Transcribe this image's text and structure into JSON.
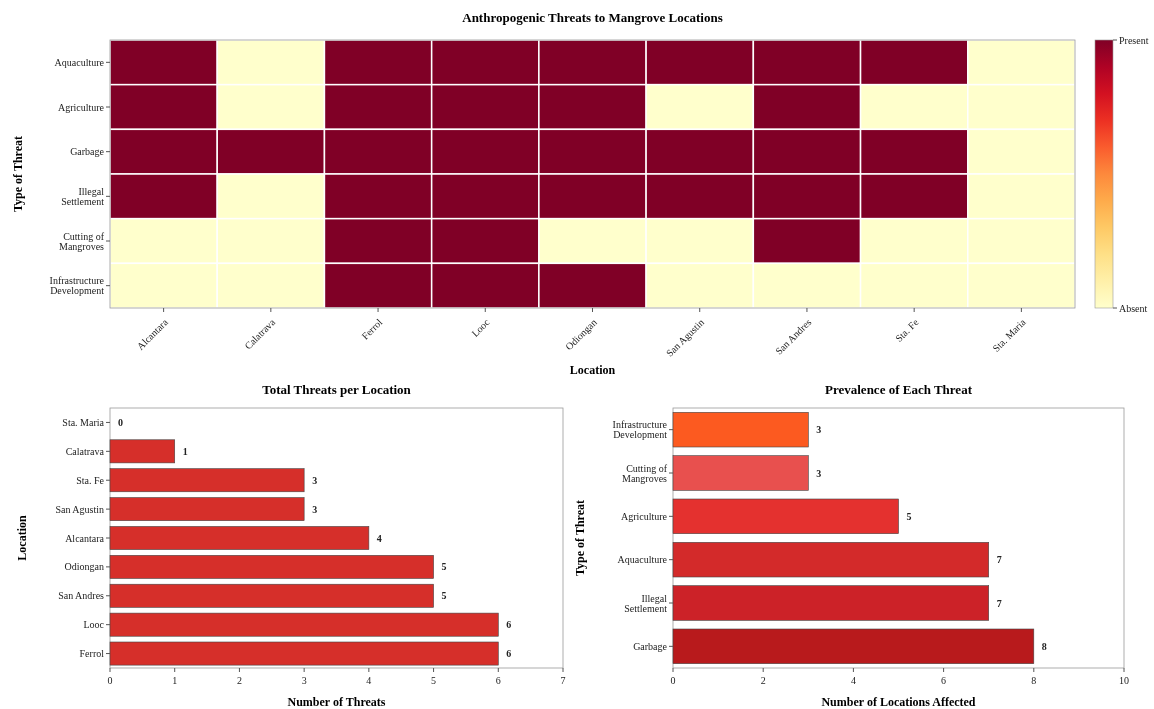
{
  "chart_data": [
    {
      "type": "heatmap",
      "title": "Anthropogenic Threats to Mangrove Locations",
      "xlabel": "Location",
      "ylabel": "Type of Threat",
      "categories": [
        "Alcantara",
        "Calatrava",
        "Ferrol",
        "Looc",
        "Odiongan",
        "San Agustin",
        "San Andres",
        "Sta. Fe",
        "Sta. Maria"
      ],
      "y_categories": [
        "Aquaculture",
        "Agriculture",
        "Garbage",
        "Illegal\nSettlement",
        "Cutting of\nMangroves",
        "Infrastructure\nDevelopment"
      ],
      "cells": [
        [
          1,
          0,
          1,
          1,
          1,
          1,
          1,
          1,
          0
        ],
        [
          1,
          0,
          1,
          1,
          1,
          0,
          1,
          0,
          0
        ],
        [
          1,
          1,
          1,
          1,
          1,
          1,
          1,
          1,
          0
        ],
        [
          1,
          0,
          1,
          1,
          1,
          1,
          1,
          1,
          0
        ],
        [
          0,
          0,
          1,
          1,
          0,
          0,
          1,
          0,
          0
        ],
        [
          0,
          0,
          1,
          1,
          1,
          0,
          0,
          0,
          0
        ]
      ],
      "clim": [
        0,
        1
      ],
      "cticks": [
        {
          "value": 0,
          "label": "Absent"
        },
        {
          "value": 1,
          "label": "Present"
        }
      ]
    },
    {
      "type": "bar",
      "orientation": "horizontal",
      "title": "Total Threats per Location",
      "xlabel": "Number of Threats",
      "ylabel": "Location",
      "categories": [
        "Sta. Maria",
        "Calatrava",
        "Sta. Fe",
        "San Agustin",
        "Alcantara",
        "Odiongan",
        "San Andres",
        "Looc",
        "Ferrol"
      ],
      "values": [
        0,
        1,
        3,
        3,
        4,
        5,
        5,
        6,
        6
      ],
      "color": "#d62f2a",
      "xlim": [
        0,
        7
      ],
      "xticks": [
        0,
        1,
        2,
        3,
        4,
        5,
        6,
        7
      ],
      "data_labels": true
    },
    {
      "type": "bar",
      "orientation": "horizontal",
      "title": "Prevalence of Each Threat",
      "xlabel": "Number of Locations Affected",
      "ylabel": "Type of Threat",
      "categories": [
        "Infrastructure\nDevelopment",
        "Cutting of\nMangroves",
        "Agriculture",
        "Aquaculture",
        "Illegal\nSettlement",
        "Garbage"
      ],
      "values": [
        3,
        3,
        5,
        7,
        7,
        8
      ],
      "colors": [
        "#fc5a20",
        "#e8504e",
        "#e4312f",
        "#d32a2a",
        "#cc2228",
        "#b81a1c"
      ],
      "xlim": [
        0,
        10
      ],
      "xticks": [
        0,
        2,
        4,
        6,
        8,
        10
      ],
      "data_labels": true
    }
  ]
}
